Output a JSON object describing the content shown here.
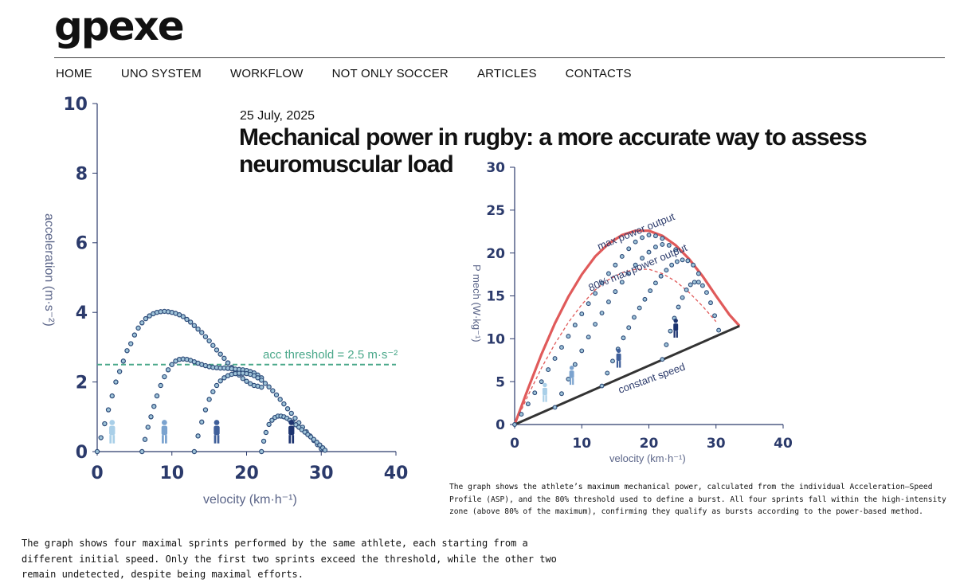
{
  "site": {
    "logo": "gpexe"
  },
  "nav": [
    "HOME",
    "UNO SYSTEM",
    "WORKFLOW",
    "NOT ONLY SOCCER",
    "ARTICLES",
    "CONTACTS"
  ],
  "article": {
    "date": "25 July, 2025",
    "title": "Mechanical power in rugby: a more accurate way to assess neuromuscular load"
  },
  "captions": {
    "power_chart": "The graph shows the athlete’s maximum mechanical power, calculated from the individual Acceleration–Speed Profile (ASP), and the 80% threshold used to define a burst. All four sprints fall within the high-intensity zone (above 80% of the maximum), confirming they qualify as bursts according to the power-based method.",
    "accel_chart": "The graph shows four maximal sprints performed by the same athlete, each starting from a different initial speed. Only the first two sprints exceed the threshold, while the other two remain undetected, despite being maximal efforts."
  },
  "colors": {
    "points": "#2c4a78",
    "threshold": "#4aa88a",
    "max_curve": "#e05a5a",
    "icons": [
      "#a9cfe8",
      "#7ba3cf",
      "#3f5f9a",
      "#1d3470"
    ]
  },
  "chart_data": [
    {
      "type": "scatter",
      "xlabel": "velocity (km·h⁻¹)",
      "ylabel": "acceleration (m·s⁻²)",
      "xlim": [
        0,
        40
      ],
      "ylim": [
        0,
        10
      ],
      "xticks": [
        0,
        10,
        20,
        30,
        40
      ],
      "yticks": [
        0,
        2,
        4,
        6,
        8,
        10
      ],
      "annotation": "acc threshold = 2.5 m·s⁻²",
      "threshold": 2.5,
      "icons": [
        "standing-person-icon",
        "walking-person-icon",
        "running-person-icon",
        "sprinting-person-icon"
      ],
      "series": [
        {
          "x": [
            0,
            0.5,
            1,
            1.5,
            2,
            2.5,
            3,
            3.5,
            4,
            4.5,
            5,
            5.5,
            6,
            6.5,
            7,
            7.5,
            8,
            8.5,
            9,
            9.5,
            10,
            10.5,
            11,
            11.5,
            12,
            12.5,
            13,
            13.5,
            14,
            14.5,
            15,
            15.5,
            16,
            16.5,
            17,
            17.5,
            18,
            18.5,
            19,
            19.5,
            20,
            20.5,
            21,
            21.5,
            22
          ],
          "y": [
            0,
            0.4,
            0.8,
            1.2,
            1.6,
            2.0,
            2.3,
            2.6,
            2.9,
            3.1,
            3.35,
            3.55,
            3.7,
            3.82,
            3.9,
            3.96,
            4.0,
            4.02,
            4.03,
            4.02,
            4.0,
            3.97,
            3.93,
            3.88,
            3.8,
            3.72,
            3.62,
            3.52,
            3.42,
            3.3,
            3.18,
            3.05,
            2.92,
            2.8,
            2.68,
            2.55,
            2.42,
            2.3,
            2.2,
            2.1,
            2.02,
            1.95,
            1.9,
            1.88,
            1.85
          ]
        },
        {
          "x": [
            6,
            6.4,
            6.8,
            7.2,
            7.6,
            8,
            8.5,
            9,
            9.5,
            10,
            10.5,
            11,
            11.5,
            12,
            12.5,
            13,
            13.5,
            14,
            14.5,
            15,
            15.5,
            16,
            16.5,
            17,
            17.5,
            18,
            18.5,
            19,
            19.5,
            20,
            20.5,
            21,
            21.5,
            22
          ],
          "y": [
            0,
            0.35,
            0.7,
            1.0,
            1.3,
            1.6,
            1.9,
            2.15,
            2.35,
            2.5,
            2.6,
            2.65,
            2.66,
            2.65,
            2.62,
            2.58,
            2.54,
            2.5,
            2.47,
            2.44,
            2.42,
            2.41,
            2.4,
            2.4,
            2.39,
            2.38,
            2.37,
            2.36,
            2.35,
            2.33,
            2.3,
            2.26,
            2.2,
            2.12
          ]
        },
        {
          "x": [
            13,
            13.5,
            14,
            14.5,
            15,
            15.5,
            16,
            16.5,
            17,
            17.5,
            18,
            18.5,
            19,
            19.5,
            20,
            20.5,
            21,
            21.5,
            22,
            22.5,
            23,
            23.5,
            24,
            24.5,
            25,
            25.5,
            26,
            26.5,
            27,
            27.5,
            28,
            28.5,
            29,
            29.5,
            30
          ],
          "y": [
            0,
            0.45,
            0.85,
            1.2,
            1.5,
            1.72,
            1.9,
            2.03,
            2.12,
            2.18,
            2.22,
            2.24,
            2.25,
            2.25,
            2.24,
            2.22,
            2.18,
            2.12,
            2.05,
            1.96,
            1.86,
            1.75,
            1.63,
            1.5,
            1.37,
            1.23,
            1.1,
            0.96,
            0.83,
            0.7,
            0.57,
            0.45,
            0.32,
            0.2,
            0.08
          ]
        },
        {
          "x": [
            22,
            22.3,
            22.6,
            23,
            23.4,
            23.8,
            24.2,
            24.6,
            25,
            25.4,
            25.8,
            26.2,
            26.6,
            27,
            27.4,
            27.8,
            28.2,
            28.6,
            29,
            29.4,
            29.8,
            30.2,
            30.5
          ],
          "y": [
            0,
            0.3,
            0.55,
            0.78,
            0.9,
            0.98,
            1.02,
            1.02,
            1.0,
            0.96,
            0.9,
            0.84,
            0.77,
            0.7,
            0.63,
            0.56,
            0.49,
            0.42,
            0.35,
            0.27,
            0.19,
            0.11,
            0.04
          ]
        }
      ]
    },
    {
      "type": "scatter",
      "xlabel": "velocity (km·h⁻¹)",
      "ylabel": "P mech (W·kg⁻¹)",
      "xlim": [
        0,
        40
      ],
      "ylim": [
        0,
        30
      ],
      "xticks": [
        0,
        10,
        20,
        30,
        40
      ],
      "yticks": [
        0,
        5,
        10,
        15,
        20,
        25,
        30
      ],
      "annotations": [
        "max power output",
        "80% max power output",
        "constant speed"
      ],
      "icons": [
        "standing-person-icon",
        "walking-person-icon",
        "running-person-icon",
        "sprinting-person-icon"
      ],
      "lines": [
        {
          "name": "max power output",
          "x": [
            0,
            2,
            4,
            6,
            8,
            10,
            12,
            14,
            16,
            18,
            20,
            22,
            24,
            26,
            28,
            30,
            32,
            33.5
          ],
          "y": [
            0,
            4.2,
            8.2,
            11.8,
            14.9,
            17.5,
            19.6,
            21.1,
            22.1,
            22.6,
            22.6,
            22.0,
            20.9,
            19.3,
            17.3,
            15.0,
            12.8,
            11.5
          ]
        },
        {
          "name": "80% max power output",
          "x": [
            0,
            2,
            4,
            6,
            8,
            10,
            12,
            14,
            16,
            18,
            20,
            22,
            24,
            26,
            28,
            30
          ],
          "y": [
            0,
            3.4,
            6.6,
            9.4,
            11.9,
            14.0,
            15.7,
            16.9,
            17.7,
            18.1,
            18.1,
            17.6,
            16.7,
            15.4,
            13.8,
            12.0
          ]
        },
        {
          "name": "constant speed",
          "x": [
            0,
            33.5
          ],
          "y": [
            0,
            11.5
          ]
        }
      ],
      "series": [
        {
          "x": [
            0,
            1,
            2,
            3,
            4,
            5,
            6,
            7,
            8,
            9,
            10,
            11,
            12,
            13,
            14,
            15,
            16,
            17,
            18,
            19,
            20,
            21,
            22
          ],
          "y": [
            0,
            1.2,
            2.4,
            3.7,
            5.0,
            6.4,
            7.7,
            9.0,
            10.3,
            11.6,
            12.9,
            14.1,
            15.3,
            16.5,
            17.6,
            18.6,
            19.6,
            20.5,
            21.3,
            21.8,
            22.1,
            22.0,
            21.7
          ]
        },
        {
          "x": [
            6,
            7,
            8,
            9,
            10,
            11,
            12,
            13,
            14,
            15,
            16,
            17,
            18,
            19,
            20,
            21,
            22,
            23,
            24
          ],
          "y": [
            2.0,
            3.6,
            5.3,
            7.0,
            8.6,
            10.2,
            11.7,
            13.0,
            14.3,
            15.5,
            16.6,
            17.6,
            18.6,
            19.4,
            20.1,
            20.7,
            21.0,
            20.9,
            20.4
          ]
        },
        {
          "x": [
            13,
            13.8,
            14.6,
            15.4,
            16.2,
            17,
            17.8,
            18.6,
            19.4,
            20.2,
            21,
            21.8,
            22.6,
            23.4,
            24.2,
            25,
            25.8,
            26.6,
            27.4
          ],
          "y": [
            4.5,
            6.0,
            7.4,
            8.8,
            10.1,
            11.3,
            12.5,
            13.6,
            14.6,
            15.6,
            16.5,
            17.3,
            18.0,
            18.6,
            19.0,
            19.2,
            19.1,
            18.6,
            17.6
          ]
        },
        {
          "x": [
            22,
            22.6,
            23.2,
            23.8,
            24.4,
            25,
            25.6,
            26.2,
            26.8,
            27.4,
            28,
            28.6,
            29.2,
            29.8,
            30.4
          ],
          "y": [
            7.6,
            9.3,
            10.9,
            12.4,
            13.7,
            14.8,
            15.7,
            16.3,
            16.6,
            16.6,
            16.2,
            15.4,
            14.2,
            12.7,
            11.0
          ]
        }
      ]
    }
  ]
}
